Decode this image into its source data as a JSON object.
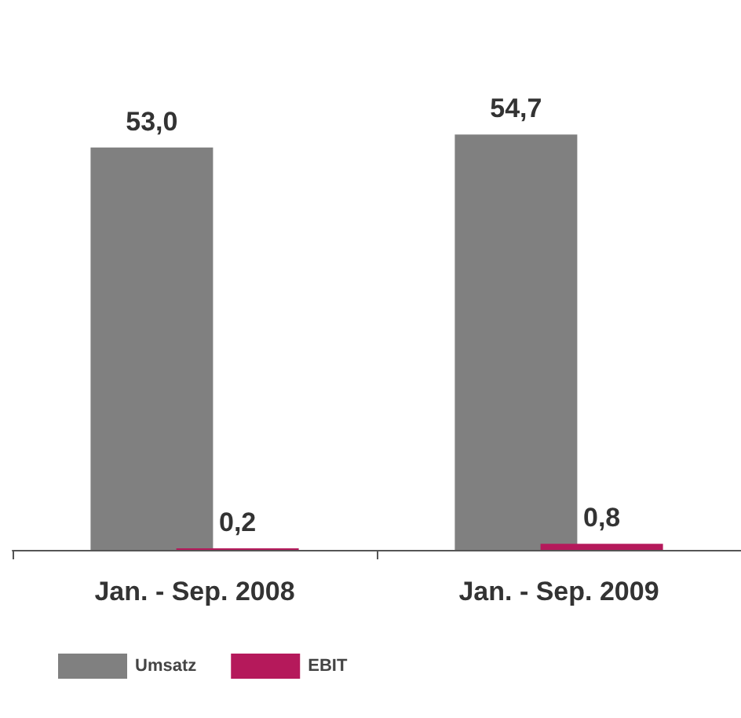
{
  "chart_data": {
    "type": "bar",
    "categories": [
      "Jan. - Sep. 2008",
      "Jan. - Sep. 2009"
    ],
    "series": [
      {
        "name": "Umsatz",
        "color": "#808080",
        "values": [
          53.0,
          54.7
        ],
        "value_labels": [
          "53,0",
          "54,7"
        ]
      },
      {
        "name": "EBIT",
        "color": "#b5195b",
        "values": [
          0.2,
          0.8
        ],
        "value_labels": [
          "0,2",
          "0,8"
        ]
      }
    ],
    "legend": "bottom left"
  }
}
